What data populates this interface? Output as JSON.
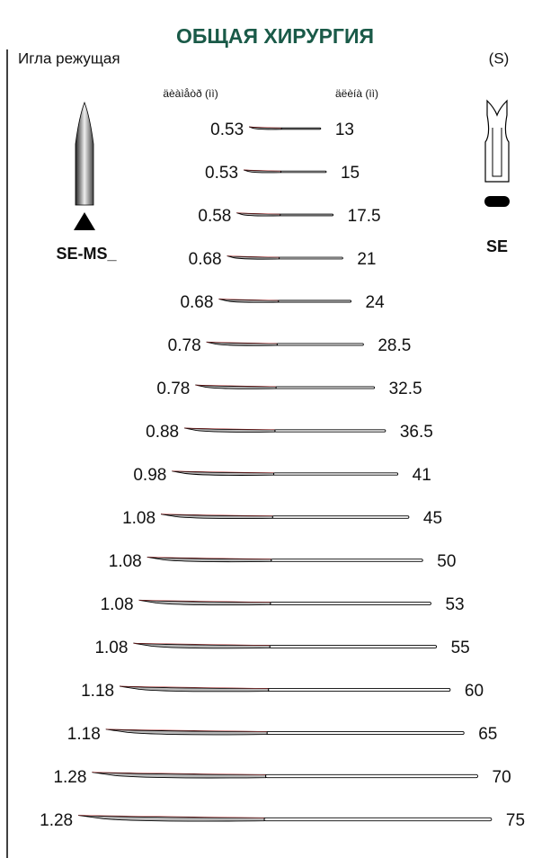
{
  "header": {
    "title": "ОБЩАЯ ХИРУРГИЯ",
    "subtitle": "Игла режущая",
    "code": "(S)"
  },
  "columns": {
    "diameter": "äèàìåòð (ìì)",
    "length": "äëèíà (ìì)"
  },
  "left_label": "SE-MS_",
  "right_label": "SE",
  "rows": [
    {
      "diameter": "0.53",
      "length": 13
    },
    {
      "diameter": "0.53",
      "length": 15
    },
    {
      "diameter": "0.58",
      "length": 17.5
    },
    {
      "diameter": "0.68",
      "length": 21
    },
    {
      "diameter": "0.68",
      "length": 24
    },
    {
      "diameter": "0.78",
      "length": 28.5
    },
    {
      "diameter": "0.78",
      "length": 32.5
    },
    {
      "diameter": "0.88",
      "length": 36.5
    },
    {
      "diameter": "0.98",
      "length": 41
    },
    {
      "diameter": "1.08",
      "length": 45
    },
    {
      "diameter": "1.08",
      "length": 50
    },
    {
      "diameter": "1.08",
      "length": 53
    },
    {
      "diameter": "1.08",
      "length": 55
    },
    {
      "diameter": "1.18",
      "length": 60
    },
    {
      "diameter": "1.18",
      "length": 65
    },
    {
      "diameter": "1.28",
      "length": 70
    },
    {
      "diameter": "1.28",
      "length": 75
    }
  ]
}
